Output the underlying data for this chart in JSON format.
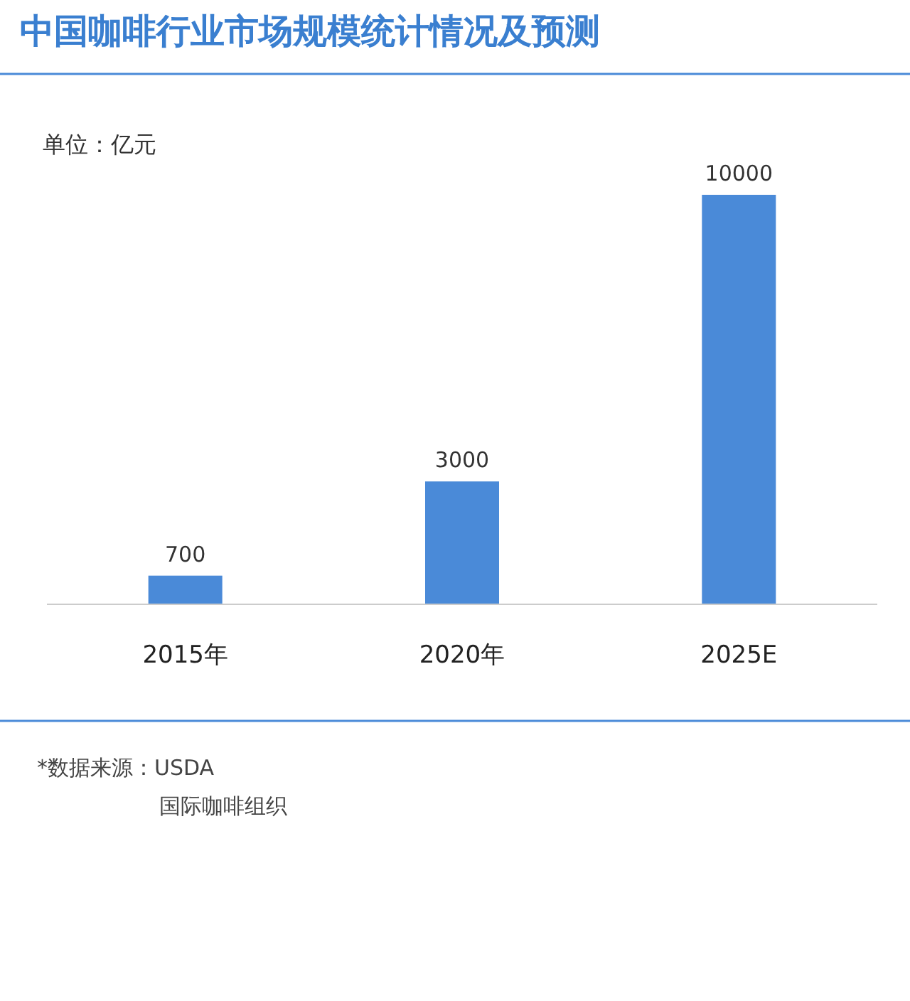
{
  "chart_data": {
    "type": "bar",
    "title": "中国咖啡行业市场规模统计情况及预测",
    "ylabel": "单位：亿元",
    "categories": [
      "2015年",
      "2020年",
      "2025E"
    ],
    "values": [
      700,
      3000,
      10000
    ],
    "color": "#4a8ad8",
    "data_labels": true,
    "annotations": [
      "*数据来源：USDA",
      "国际咖啡组织"
    ]
  }
}
